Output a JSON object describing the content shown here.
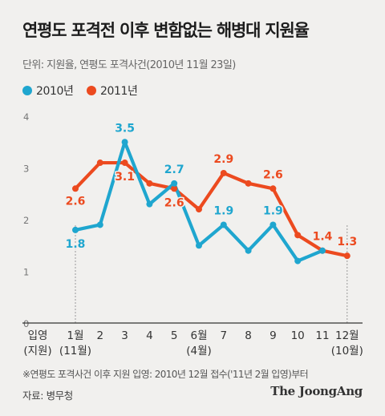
{
  "chart_data": {
    "type": "line",
    "title": "연평도 포격전 이후 변함없는 해병대 지원율",
    "subtitle": "단위: 지원율, 연평도 포격사건(2010년 11월 23일)",
    "categories": [
      "1",
      "2",
      "3",
      "4",
      "5",
      "6",
      "7",
      "8",
      "9",
      "10",
      "11",
      "12"
    ],
    "x_tick_labels": [
      {
        "top": "1월",
        "bottom": "(11월)"
      },
      {
        "top": "2"
      },
      {
        "top": "3"
      },
      {
        "top": "4"
      },
      {
        "top": "5"
      },
      {
        "top": "6월",
        "bottom": "(4월)"
      },
      {
        "top": "7"
      },
      {
        "top": "8"
      },
      {
        "top": "9"
      },
      {
        "top": "10"
      },
      {
        "top": "11"
      },
      {
        "top": "12월",
        "bottom": "(10월)"
      }
    ],
    "x_axis_label": {
      "top": "입영",
      "bottom": "(지원)"
    },
    "y_ticks": [
      "0",
      "1",
      "2",
      "3",
      "4"
    ],
    "ylim": [
      0,
      4
    ],
    "grid": false,
    "legend_position": "top-left",
    "series": [
      {
        "name": "2010년",
        "color": "#1fa6cf",
        "values": [
          null,
          null,
          null,
          null,
          null,
          null,
          null,
          null,
          null,
          null,
          null,
          null
        ],
        "x_start_index": 0,
        "points": [
          {
            "x": "1",
            "y": 1.8
          },
          {
            "x": "2",
            "y": 1.9
          },
          {
            "x": "3",
            "y": 3.5
          },
          {
            "x": "4",
            "y": 2.3
          },
          {
            "x": "5",
            "y": 2.7
          },
          {
            "x": "6",
            "y": 1.5
          },
          {
            "x": "7",
            "y": 1.9
          },
          {
            "x": "8",
            "y": 1.4
          },
          {
            "x": "9",
            "y": 1.9
          },
          {
            "x": "10",
            "y": 1.2
          },
          {
            "x": "11",
            "y": 1.4
          }
        ],
        "labeled_points": [
          {
            "x": "1",
            "label": "1.8"
          },
          {
            "x": "3",
            "label": "3.5"
          },
          {
            "x": "5",
            "label": "2.7"
          },
          {
            "x": "7",
            "label": "1.9"
          },
          {
            "x": "9",
            "label": "1.9"
          }
        ]
      },
      {
        "name": "2011년",
        "color": "#ec4a1f",
        "points": [
          {
            "x": "1",
            "y": 2.6
          },
          {
            "x": "2",
            "y": 3.1
          },
          {
            "x": "3",
            "y": 3.1
          },
          {
            "x": "4",
            "y": 2.7
          },
          {
            "x": "5",
            "y": 2.6
          },
          {
            "x": "6",
            "y": 2.2
          },
          {
            "x": "7",
            "y": 2.9
          },
          {
            "x": "8",
            "y": 2.7
          },
          {
            "x": "9",
            "y": 2.6
          },
          {
            "x": "10",
            "y": 1.7
          },
          {
            "x": "11",
            "y": 1.4
          },
          {
            "x": "12",
            "y": 1.3
          }
        ],
        "labeled_points": [
          {
            "x": "1",
            "label": "2.6"
          },
          {
            "x": "3",
            "label": "3.1"
          },
          {
            "x": "5",
            "label": "2.6"
          },
          {
            "x": "7",
            "label": "2.9"
          },
          {
            "x": "9",
            "label": "2.6"
          },
          {
            "x": "11",
            "label": "1.4"
          },
          {
            "x": "12",
            "label": "1.3"
          }
        ]
      }
    ],
    "reference_lines_at": [
      "1",
      "12"
    ]
  },
  "footnote": "※연평도 포격사건 이후 지원 입영: 2010년 12월 접수('11년 2월 입영)부터",
  "source": "자료: 병무청",
  "brand": "The JoongAng",
  "colors": {
    "background": "#f1f0ee",
    "axis": "#333333",
    "reference": "#999999"
  }
}
